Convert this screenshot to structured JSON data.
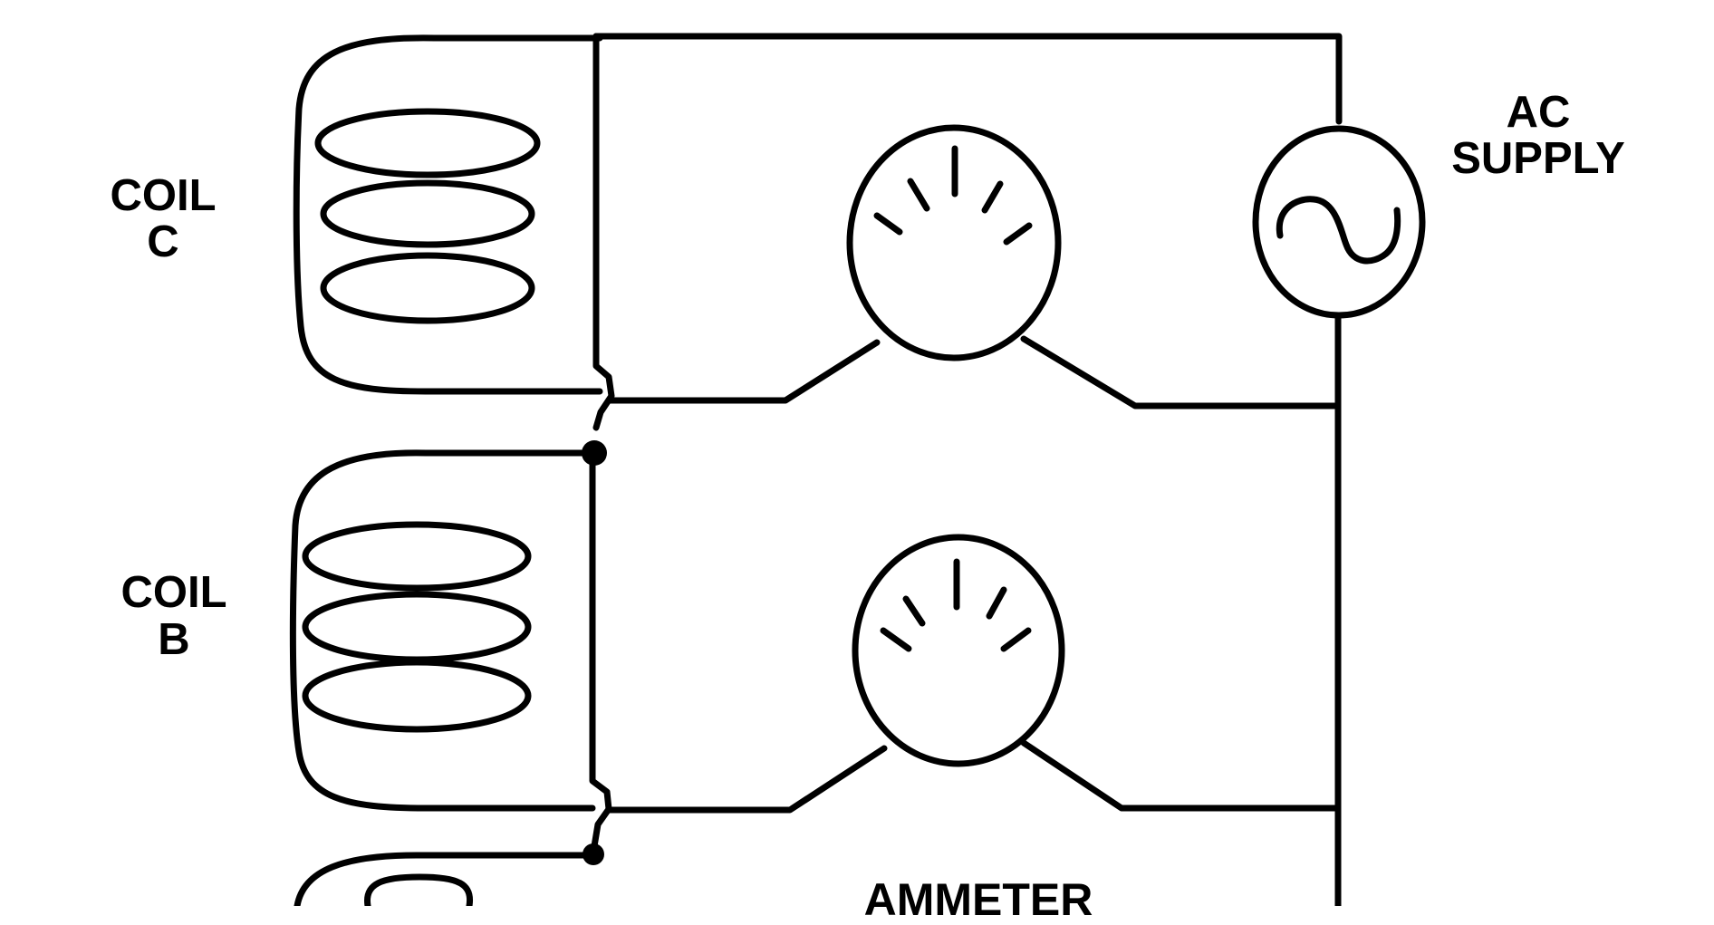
{
  "labels": {
    "coil_c_line1": "COIL",
    "coil_c_line2": "C",
    "coil_b_line1": "COIL",
    "coil_b_line2": "B",
    "ac_line1": "AC",
    "ac_line2": "SUPPLY",
    "ammeter": "AMMETER"
  },
  "colors": {
    "ink": "#000000",
    "background": "#ffffff"
  }
}
